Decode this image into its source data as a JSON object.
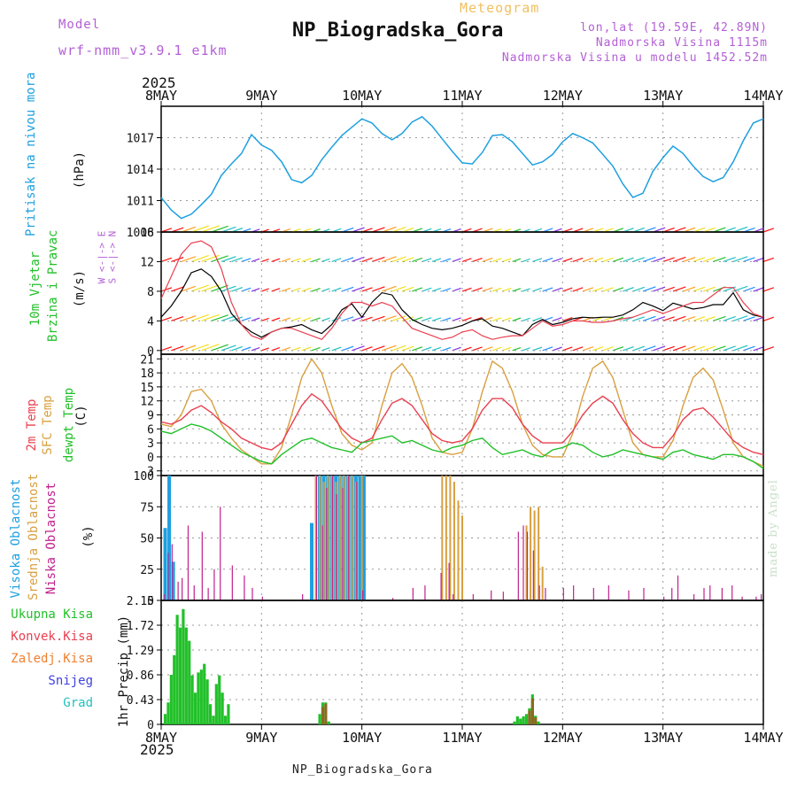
{
  "header": {
    "model_label": "Model",
    "model_name": "wrf-nmm_v3.9.1 e1km",
    "meteogram_label": "Meteogram",
    "station_title": "NP_Biogradska_Gora",
    "lonlat": "lon,lat (19.59E, 42.89N)",
    "altitude": "Nadmorska Visina 1115m",
    "altitude_model": "Nadmorska Visina u modelu 1452.52m",
    "year_top": "2025",
    "year_bottom": "2025",
    "footer_station": "NP_Biogradska_Gora",
    "watermark": "made by Angel"
  },
  "colors": {
    "pressure": "#1ea0e0",
    "wind_label": "#22c02a",
    "temp2m": "#e84050",
    "tsfc": "#d8a040",
    "dewpoint": "#22c02a",
    "cloud_high": "#1ea0e0",
    "cloud_mid": "#d8a040",
    "cloud_low": "#c0208c",
    "precip_total": "#22c02a",
    "precip_conv": "#e84050",
    "precip_strat": "#f08030",
    "snow": "#4040e0",
    "hail": "#20c0c0",
    "wind_purple": "#b45fd6",
    "grid": "#9a9a9a"
  },
  "chart_data": [
    {
      "type": "line",
      "id": "pressure",
      "ylabel_main": "Pritisak na nivou mora",
      "ylabel_unit": "(hPa)",
      "ylim": [
        1008,
        1020
      ],
      "yticks": [
        1008,
        1011,
        1014,
        1017
      ],
      "ytick_labels": [
        "1008",
        "1011",
        "1014",
        "1017"
      ],
      "x_days": [
        "8MAY",
        "9MAY",
        "10MAY",
        "11MAY",
        "12MAY",
        "13MAY",
        "14MAY"
      ],
      "x": [
        0,
        0.1,
        0.2,
        0.3,
        0.4,
        0.5,
        0.6,
        0.7,
        0.8,
        0.9,
        1.0,
        1.1,
        1.2,
        1.3,
        1.4,
        1.5,
        1.6,
        1.7,
        1.8,
        1.9,
        2.0,
        2.1,
        2.2,
        2.3,
        2.4,
        2.5,
        2.6,
        2.7,
        2.8,
        2.9,
        3.0,
        3.1,
        3.2,
        3.3,
        3.4,
        3.5,
        3.6,
        3.7,
        3.8,
        3.9,
        4.0,
        4.1,
        4.2,
        4.3,
        4.4,
        4.5,
        4.6,
        4.7,
        4.8,
        4.9,
        5.0,
        5.1,
        5.2,
        5.3,
        5.4,
        5.5,
        5.6,
        5.7,
        5.8,
        5.9,
        6.0
      ],
      "values": [
        1011.3,
        1010.1,
        1009.3,
        1009.7,
        1010.6,
        1011.6,
        1013.4,
        1014.5,
        1015.5,
        1017.3,
        1016.3,
        1015.8,
        1014.7,
        1013.0,
        1012.7,
        1013.4,
        1014.9,
        1016.1,
        1017.2,
        1018.0,
        1018.8,
        1018.4,
        1017.4,
        1016.8,
        1017.4,
        1018.5,
        1019.0,
        1018.1,
        1016.9,
        1015.7,
        1014.6,
        1014.5,
        1015.6,
        1017.2,
        1017.3,
        1016.6,
        1015.5,
        1014.4,
        1014.7,
        1015.4,
        1016.6,
        1017.4,
        1017.0,
        1016.5,
        1015.4,
        1014.3,
        1012.6,
        1011.3,
        1011.7,
        1013.8,
        1015.1,
        1016.2,
        1015.5,
        1014.3,
        1013.3,
        1012.8,
        1013.2,
        1014.7,
        1016.7,
        1018.4,
        1018.8
      ]
    },
    {
      "type": "line",
      "id": "wind",
      "ylabel_main_a": "10m Vjetar",
      "ylabel_main_b": "Brzina i Pravac",
      "ylabel_unit": "(m/s)",
      "compass": "W <-|-> E",
      "compass_sub": "S <-|-> N",
      "ylim": [
        -0.5,
        16
      ],
      "yticks": [
        0,
        4,
        8,
        12,
        16
      ],
      "ytick_labels": [
        "0",
        "4",
        "8",
        "12",
        "16"
      ],
      "x": [
        0,
        0.1,
        0.2,
        0.3,
        0.4,
        0.5,
        0.6,
        0.7,
        0.8,
        0.9,
        1.0,
        1.1,
        1.2,
        1.3,
        1.4,
        1.5,
        1.6,
        1.7,
        1.8,
        1.9,
        2.0,
        2.1,
        2.2,
        2.3,
        2.4,
        2.5,
        2.6,
        2.7,
        2.8,
        2.9,
        3.0,
        3.1,
        3.2,
        3.3,
        3.4,
        3.5,
        3.6,
        3.7,
        3.8,
        3.9,
        4.0,
        4.1,
        4.2,
        4.3,
        4.4,
        4.5,
        4.6,
        4.7,
        4.8,
        4.9,
        5.0,
        5.1,
        5.2,
        5.3,
        5.4,
        5.5,
        5.6,
        5.7,
        5.8,
        5.9,
        6.0
      ],
      "speed": [
        4.5,
        6.0,
        8.0,
        10.5,
        11.0,
        10.0,
        8.0,
        5.0,
        3.5,
        2.5,
        1.8,
        2.5,
        3.0,
        3.2,
        3.5,
        2.8,
        2.3,
        3.5,
        5.5,
        6.3,
        4.5,
        6.5,
        7.8,
        7.5,
        5.5,
        4.2,
        3.5,
        3.0,
        2.8,
        3.0,
        3.4,
        4.0,
        4.3,
        3.3,
        3.0,
        2.5,
        2.0,
        3.5,
        4.2,
        3.5,
        3.8,
        4.3,
        4.5,
        4.4,
        4.5,
        4.5,
        4.8,
        5.5,
        6.5,
        6.0,
        5.4,
        6.4,
        6.0,
        5.6,
        5.8,
        6.2,
        6.2,
        7.8,
        5.5,
        4.8,
        4.5
      ],
      "gust": [
        7.0,
        10.0,
        13.0,
        14.5,
        14.8,
        14.0,
        11.0,
        6.5,
        3.5,
        2.0,
        1.5,
        2.5,
        3.0,
        3.0,
        2.5,
        2.0,
        1.5,
        3.0,
        5.0,
        6.5,
        6.5,
        6.0,
        6.5,
        6.0,
        4.5,
        3.0,
        2.5,
        2.0,
        1.5,
        1.8,
        2.5,
        2.8,
        2.0,
        1.5,
        1.8,
        2.0,
        2.0,
        3.0,
        4.0,
        3.3,
        3.5,
        4.0,
        4.0,
        3.8,
        3.8,
        4.0,
        4.3,
        4.5,
        5.0,
        5.5,
        5.0,
        5.5,
        6.0,
        6.5,
        6.5,
        7.5,
        8.5,
        8.5,
        6.5,
        5.0,
        4.5
      ]
    },
    {
      "type": "line",
      "id": "temperature",
      "ylabel_a": "2m Temp",
      "ylabel_b": "SFC Temp",
      "ylabel_c": "dewpt Temp",
      "ylabel_unit": "(C)",
      "ylim": [
        -4,
        22
      ],
      "yticks": [
        -3,
        0,
        3,
        6,
        9,
        12,
        15,
        18,
        21
      ],
      "ytick_labels": [
        "-3",
        "0",
        "3",
        "6",
        "9",
        "12",
        "15",
        "18",
        "21"
      ],
      "x": [
        0,
        0.1,
        0.2,
        0.3,
        0.4,
        0.5,
        0.6,
        0.7,
        0.8,
        0.9,
        1.0,
        1.1,
        1.2,
        1.3,
        1.4,
        1.5,
        1.6,
        1.7,
        1.8,
        1.9,
        2.0,
        2.1,
        2.2,
        2.3,
        2.4,
        2.5,
        2.6,
        2.7,
        2.8,
        2.9,
        3.0,
        3.1,
        3.2,
        3.3,
        3.4,
        3.5,
        3.6,
        3.7,
        3.8,
        3.9,
        4.0,
        4.1,
        4.2,
        4.3,
        4.4,
        4.5,
        4.6,
        4.7,
        4.8,
        4.9,
        5.0,
        5.1,
        5.2,
        5.3,
        5.4,
        5.5,
        5.6,
        5.7,
        5.8,
        5.9,
        6.0
      ],
      "t2m": [
        7.5,
        7.0,
        8.0,
        10.0,
        11.0,
        9.5,
        7.5,
        6.0,
        4.0,
        3.0,
        2.0,
        1.5,
        3.0,
        7.0,
        11.0,
        13.5,
        12.0,
        9.0,
        6.0,
        4.0,
        3.0,
        4.0,
        8.0,
        11.5,
        12.5,
        11.0,
        8.0,
        5.0,
        3.5,
        3.0,
        3.5,
        6.0,
        10.0,
        12.5,
        12.5,
        10.5,
        7.0,
        4.5,
        3.0,
        3.0,
        3.0,
        5.5,
        9.0,
        11.5,
        13.0,
        11.5,
        8.0,
        5.0,
        3.0,
        2.0,
        2.0,
        4.5,
        8.0,
        10.0,
        10.5,
        8.5,
        6.0,
        3.5,
        2.0,
        1.0,
        0.5
      ],
      "tsfc": [
        7.0,
        6.5,
        9.0,
        14.0,
        14.5,
        12.0,
        7.0,
        4.0,
        1.5,
        0.0,
        -1.5,
        -1.5,
        2.0,
        9.0,
        17.0,
        21.0,
        18.0,
        11.0,
        5.0,
        2.5,
        1.5,
        3.0,
        11.0,
        18.0,
        20.0,
        17.0,
        11.0,
        4.0,
        1.0,
        0.5,
        1.0,
        6.0,
        14.0,
        20.5,
        19.0,
        14.0,
        7.0,
        2.5,
        0.5,
        0.0,
        0.0,
        5.0,
        13.0,
        19.0,
        20.5,
        17.0,
        10.0,
        3.0,
        0.5,
        0.0,
        0.0,
        3.5,
        11.0,
        17.0,
        19.0,
        16.5,
        10.0,
        3.0,
        0.0,
        -1.0,
        -2.0
      ],
      "dewpt": [
        5.5,
        5.0,
        6.0,
        7.0,
        6.5,
        5.5,
        4.0,
        2.5,
        1.0,
        0.0,
        -1.0,
        -1.5,
        0.5,
        2.0,
        3.5,
        4.0,
        3.0,
        2.0,
        1.5,
        1.0,
        3.0,
        3.5,
        4.0,
        4.5,
        3.0,
        3.5,
        2.5,
        1.5,
        1.0,
        2.0,
        2.5,
        3.5,
        4.0,
        2.0,
        0.5,
        1.0,
        1.5,
        0.5,
        0.0,
        1.5,
        2.0,
        3.0,
        2.5,
        1.0,
        0.0,
        0.5,
        1.5,
        1.0,
        0.5,
        0.0,
        -0.5,
        1.0,
        1.5,
        0.5,
        0.0,
        -0.5,
        0.5,
        0.5,
        0.0,
        -1.0,
        -2.5
      ]
    },
    {
      "type": "bar",
      "id": "clouds",
      "ylabel_a": "Visoka Oblacnost",
      "ylabel_b": "Srednja Oblacnost",
      "ylabel_c": "Niska Oblacnost",
      "ylabel_unit": "(%)",
      "ylim": [
        0,
        100
      ],
      "yticks": [
        0,
        25,
        50,
        75,
        100
      ],
      "ytick_labels": [
        "0",
        "25",
        "50",
        "75",
        "100"
      ],
      "high": [
        [
          0.04,
          58
        ],
        [
          0.08,
          100
        ],
        [
          0.12,
          31
        ],
        [
          1.5,
          62
        ],
        [
          1.58,
          100
        ],
        [
          1.62,
          100
        ],
        [
          1.66,
          100
        ],
        [
          1.7,
          100
        ],
        [
          1.74,
          100
        ],
        [
          1.78,
          100
        ],
        [
          1.82,
          100
        ],
        [
          1.86,
          100
        ],
        [
          1.9,
          100
        ],
        [
          1.94,
          100
        ],
        [
          1.98,
          100
        ],
        [
          2.02,
          100
        ]
      ],
      "mid": [
        [
          1.54,
          100
        ],
        [
          1.58,
          100
        ],
        [
          1.62,
          95
        ],
        [
          1.66,
          100
        ],
        [
          1.7,
          100
        ],
        [
          1.74,
          95
        ],
        [
          1.78,
          100
        ],
        [
          1.82,
          100
        ],
        [
          1.86,
          100
        ],
        [
          1.9,
          100
        ],
        [
          1.94,
          95
        ],
        [
          2.0,
          100
        ],
        [
          2.8,
          100
        ],
        [
          2.84,
          100
        ],
        [
          2.88,
          100
        ],
        [
          2.92,
          95
        ],
        [
          2.96,
          80
        ],
        [
          3.0,
          68
        ],
        [
          3.64,
          60
        ],
        [
          3.68,
          75
        ],
        [
          3.72,
          72
        ],
        [
          3.76,
          75
        ],
        [
          3.8,
          27
        ]
      ],
      "low": [
        [
          0.02,
          5
        ],
        [
          0.06,
          38
        ],
        [
          0.1,
          45
        ],
        [
          0.16,
          15
        ],
        [
          0.2,
          18
        ],
        [
          0.26,
          60
        ],
        [
          0.32,
          12
        ],
        [
          0.4,
          55
        ],
        [
          0.46,
          10
        ],
        [
          0.52,
          25
        ],
        [
          0.58,
          75
        ],
        [
          0.7,
          28
        ],
        [
          0.82,
          20
        ],
        [
          0.9,
          10
        ],
        [
          1.0,
          3
        ],
        [
          1.4,
          5
        ],
        [
          1.54,
          100
        ],
        [
          1.6,
          60
        ],
        [
          1.64,
          90
        ],
        [
          1.7,
          100
        ],
        [
          1.74,
          85
        ],
        [
          1.8,
          90
        ],
        [
          1.86,
          100
        ],
        [
          1.94,
          95
        ],
        [
          2.0,
          8
        ],
        [
          2.3,
          2
        ],
        [
          2.5,
          10
        ],
        [
          2.62,
          12
        ],
        [
          2.78,
          22
        ],
        [
          2.86,
          30
        ],
        [
          2.9,
          5
        ],
        [
          3.1,
          5
        ],
        [
          3.28,
          8
        ],
        [
          3.4,
          7
        ],
        [
          3.55,
          55
        ],
        [
          3.6,
          60
        ],
        [
          3.64,
          55
        ],
        [
          3.7,
          40
        ],
        [
          3.76,
          12
        ],
        [
          3.82,
          10
        ],
        [
          4.0,
          10
        ],
        [
          4.1,
          12
        ],
        [
          4.3,
          10
        ],
        [
          4.45,
          12
        ],
        [
          4.65,
          8
        ],
        [
          4.8,
          10
        ],
        [
          5.0,
          3
        ],
        [
          5.08,
          10
        ],
        [
          5.14,
          20
        ],
        [
          5.3,
          5
        ],
        [
          5.4,
          10
        ],
        [
          5.46,
          12
        ],
        [
          5.58,
          10
        ],
        [
          5.68,
          12
        ],
        [
          5.78,
          3
        ],
        [
          5.92,
          3
        ],
        [
          5.97,
          5
        ]
      ]
    },
    {
      "type": "bar",
      "id": "precip",
      "ylabel_main": "1hr Precip",
      "ylabel_unit": "(mm)",
      "legend": [
        "Ukupna Kisa",
        "Konvek.Kisa",
        "Zaledj.Kisa",
        "Snijeg",
        "Grad"
      ],
      "ylim": [
        0,
        2.15
      ],
      "yticks": [
        0,
        0.43,
        0.86,
        1.29,
        1.72,
        2.15
      ],
      "ytick_labels": [
        "0",
        "0.43",
        "0.86",
        "1.29",
        "1.72",
        "2.15"
      ],
      "total": [
        [
          0.04,
          0.18
        ],
        [
          0.07,
          0.38
        ],
        [
          0.1,
          0.86
        ],
        [
          0.13,
          1.2
        ],
        [
          0.16,
          1.9
        ],
        [
          0.19,
          1.68
        ],
        [
          0.22,
          2.0
        ],
        [
          0.25,
          1.68
        ],
        [
          0.28,
          1.45
        ],
        [
          0.31,
          0.85
        ],
        [
          0.34,
          0.55
        ],
        [
          0.37,
          0.9
        ],
        [
          0.4,
          0.95
        ],
        [
          0.43,
          1.05
        ],
        [
          0.46,
          0.78
        ],
        [
          0.49,
          0.35
        ],
        [
          0.52,
          0.15
        ],
        [
          0.55,
          0.7
        ],
        [
          0.58,
          0.85
        ],
        [
          0.61,
          0.55
        ],
        [
          0.64,
          0.15
        ],
        [
          0.67,
          0.35
        ],
        [
          1.58,
          0.18
        ],
        [
          1.61,
          0.38
        ],
        [
          1.64,
          0.38
        ],
        [
          1.67,
          0.05
        ],
        [
          3.52,
          0.05
        ],
        [
          3.55,
          0.14
        ],
        [
          3.58,
          0.1
        ],
        [
          3.61,
          0.14
        ],
        [
          3.64,
          0.18
        ],
        [
          3.67,
          0.28
        ],
        [
          3.7,
          0.52
        ],
        [
          3.73,
          0.15
        ],
        [
          3.76,
          0.05
        ]
      ],
      "conv": [
        [
          1.61,
          0.3
        ],
        [
          1.64,
          0.36
        ],
        [
          3.67,
          0.24
        ],
        [
          3.7,
          0.45
        ],
        [
          3.73,
          0.12
        ]
      ]
    }
  ]
}
